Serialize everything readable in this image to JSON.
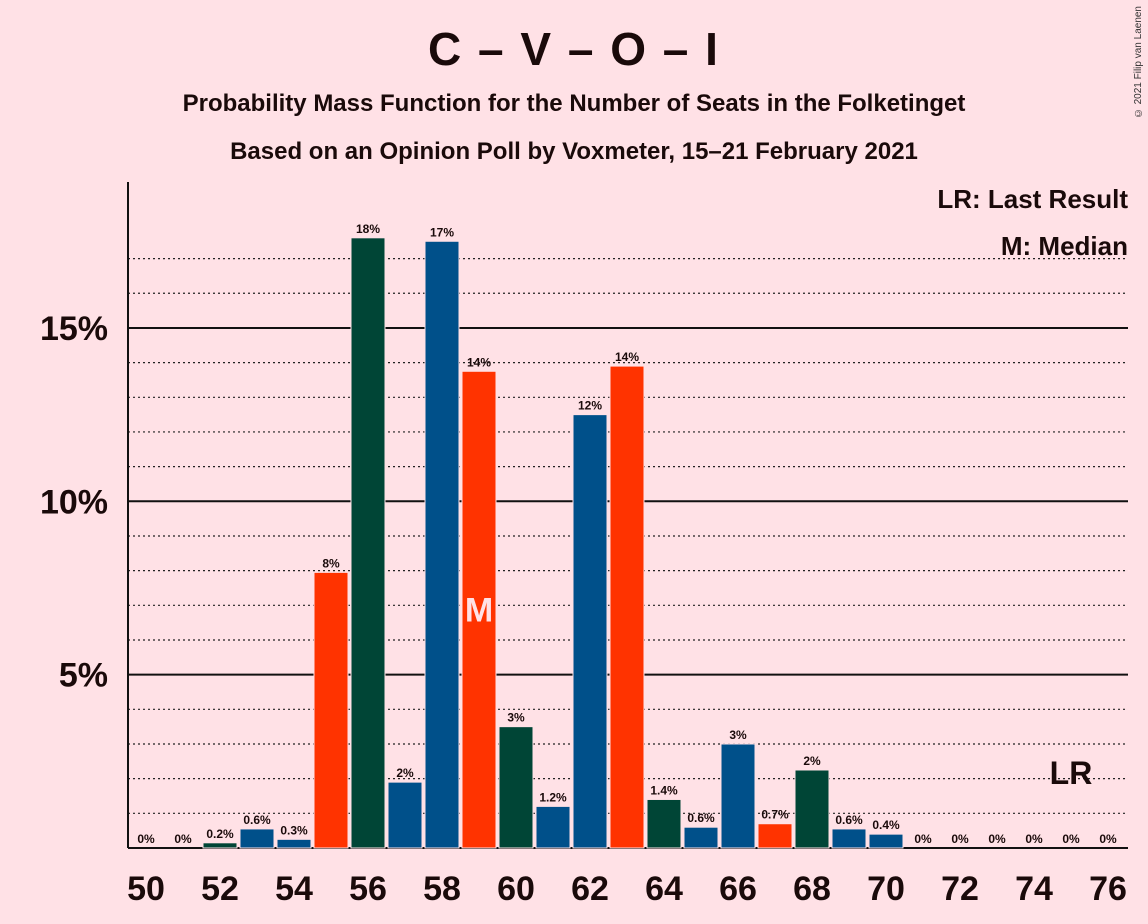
{
  "chart_data": {
    "type": "bar",
    "title": "C – V – O – I",
    "subtitle": "Probability Mass Function for the Number of Seats in the Folketinget",
    "subtitle2": "Based on an Opinion Poll by Voxmeter, 15–21 February 2021",
    "copyright": "© 2021 Filip van Laenen",
    "legend": {
      "lr": "LR: Last Result",
      "m": "M: Median"
    },
    "ylim": [
      0,
      19
    ],
    "xlim": [
      50,
      76
    ],
    "y_ticks": [
      {
        "value": 5,
        "label": "5%"
      },
      {
        "value": 10,
        "label": "10%"
      },
      {
        "value": 15,
        "label": "15%"
      }
    ],
    "x_ticks": [
      50,
      52,
      54,
      56,
      58,
      60,
      62,
      64,
      66,
      68,
      70,
      72,
      74,
      76
    ],
    "median_seat": 59,
    "median_label": "M",
    "last_result_seat": 75,
    "last_result_label": "LR",
    "colors": {
      "red": "#FF3300",
      "dark_green": "#004536",
      "blue": "#00508A"
    },
    "bars": [
      {
        "seat": 50,
        "value": 0,
        "label": "0%",
        "color": "#004536"
      },
      {
        "seat": 51,
        "value": 0,
        "label": "0%",
        "color": "#00508A"
      },
      {
        "seat": 52,
        "value": 0.15,
        "label": "0.2%",
        "color": "#004536"
      },
      {
        "seat": 53,
        "value": 0.55,
        "label": "0.6%",
        "color": "#00508A"
      },
      {
        "seat": 54,
        "value": 0.25,
        "label": "0.3%",
        "color": "#00508A"
      },
      {
        "seat": 55,
        "value": 7.95,
        "label": "8%",
        "color": "#FF3300"
      },
      {
        "seat": 56,
        "value": 17.6,
        "label": "18%",
        "color": "#004536"
      },
      {
        "seat": 57,
        "value": 1.9,
        "label": "2%",
        "color": "#00508A"
      },
      {
        "seat": 58,
        "value": 17.5,
        "label": "17%",
        "color": "#00508A"
      },
      {
        "seat": 59,
        "value": 13.75,
        "label": "14%",
        "color": "#FF3300"
      },
      {
        "seat": 60,
        "value": 3.5,
        "label": "3%",
        "color": "#004536"
      },
      {
        "seat": 61,
        "value": 1.2,
        "label": "1.2%",
        "color": "#00508A"
      },
      {
        "seat": 62,
        "value": 12.5,
        "label": "12%",
        "color": "#00508A"
      },
      {
        "seat": 63,
        "value": 13.9,
        "label": "14%",
        "color": "#FF3300"
      },
      {
        "seat": 64,
        "value": 1.4,
        "label": "1.4%",
        "color": "#004536"
      },
      {
        "seat": 65,
        "value": 0.6,
        "label": "0.6%",
        "color": "#00508A"
      },
      {
        "seat": 66,
        "value": 3.0,
        "label": "3%",
        "color": "#00508A"
      },
      {
        "seat": 67,
        "value": 0.7,
        "label": "0.7%",
        "color": "#FF3300"
      },
      {
        "seat": 68,
        "value": 2.25,
        "label": "2%",
        "color": "#004536"
      },
      {
        "seat": 69,
        "value": 0.55,
        "label": "0.6%",
        "color": "#00508A"
      },
      {
        "seat": 70,
        "value": 0.4,
        "label": "0.4%",
        "color": "#00508A"
      },
      {
        "seat": 71,
        "value": 0,
        "label": "0%",
        "color": "#FF3300"
      },
      {
        "seat": 72,
        "value": 0,
        "label": "0%",
        "color": "#004536"
      },
      {
        "seat": 73,
        "value": 0,
        "label": "0%",
        "color": "#00508A"
      },
      {
        "seat": 74,
        "value": 0,
        "label": "0%",
        "color": "#00508A"
      },
      {
        "seat": 75,
        "value": 0,
        "label": "0%",
        "color": "#FF3300"
      },
      {
        "seat": 76,
        "value": 0,
        "label": "0%",
        "color": "#004536"
      }
    ]
  }
}
